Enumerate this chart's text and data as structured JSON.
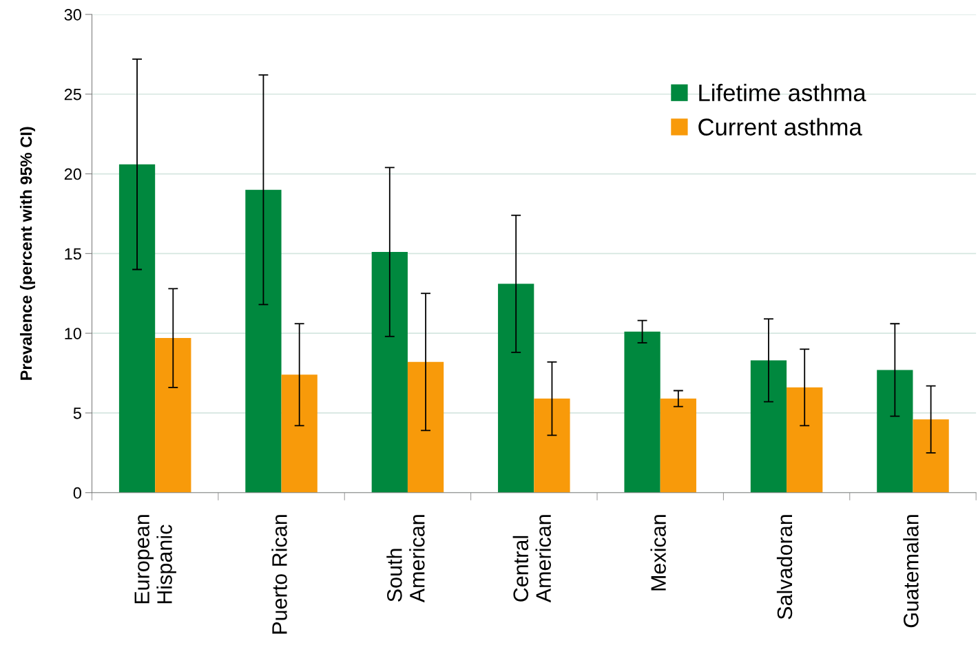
{
  "chart_data": {
    "type": "bar",
    "ylabel": "Prevalence (percent with 95% CI)",
    "categories": [
      "European\nHispanic",
      "Puerto Rican",
      "South\nAmerican",
      "Central\nAmerican",
      "Mexican",
      "Salvadoran",
      "Guatemalan"
    ],
    "series": [
      {
        "name": "Lifetime asthma",
        "color": "#00883e",
        "values": [
          20.6,
          19.0,
          15.1,
          13.1,
          10.1,
          8.3,
          7.7
        ],
        "errors": [
          [
            14.0,
            27.2
          ],
          [
            11.8,
            26.2
          ],
          [
            9.8,
            20.4
          ],
          [
            8.8,
            17.4
          ],
          [
            9.4,
            10.8
          ],
          [
            5.7,
            10.9
          ],
          [
            4.8,
            10.6
          ]
        ]
      },
      {
        "name": "Current asthma",
        "color": "#f89a0a",
        "values": [
          9.7,
          7.4,
          8.2,
          5.9,
          5.9,
          6.6,
          4.6
        ],
        "errors": [
          [
            6.6,
            12.8
          ],
          [
            4.2,
            10.6
          ],
          [
            3.9,
            12.5
          ],
          [
            3.6,
            8.2
          ],
          [
            5.4,
            6.4
          ],
          [
            4.2,
            9.0
          ],
          [
            2.5,
            6.7
          ]
        ]
      }
    ],
    "ylim": [
      0,
      30
    ],
    "yticks": [
      0,
      5,
      10,
      15,
      20,
      25,
      30
    ],
    "grid": "y",
    "legend": "top right"
  }
}
